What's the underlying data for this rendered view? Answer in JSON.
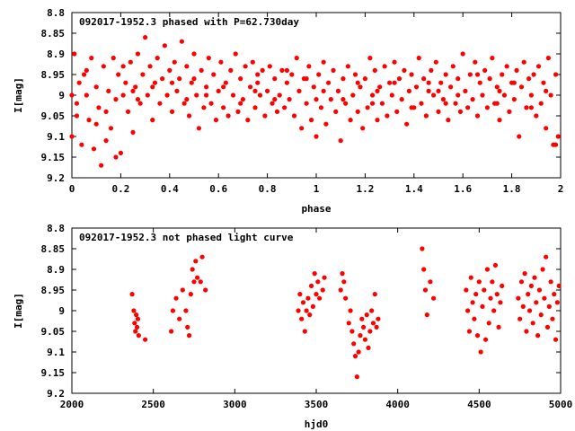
{
  "colors": {
    "points": "#ff0000",
    "axes": "#000000",
    "background": "#ffffff"
  },
  "chart_data": [
    {
      "type": "scatter",
      "title": "092017-1952.3 phased with P=62.730day",
      "xlabel": "phase",
      "ylabel": "I[mag]",
      "xlim": [
        0,
        2
      ],
      "ylim": [
        9.2,
        8.8
      ],
      "y_inverted": true,
      "xticks": [
        "0",
        "0.2",
        "0.4",
        "0.6",
        "0.8",
        "1",
        "1.2",
        "1.4",
        "1.6",
        "1.8",
        "2"
      ],
      "yticks": [
        "8.8",
        "8.85",
        "8.9",
        "8.95",
        "9",
        "9.05",
        "9.1",
        "9.15",
        "9.2"
      ],
      "grid": false,
      "points": [
        [
          0.0,
          9.1
        ],
        [
          0.01,
          8.9
        ],
        [
          0.02,
          9.02
        ],
        [
          0.03,
          8.97
        ],
        [
          0.04,
          9.12
        ],
        [
          0.05,
          8.95
        ],
        [
          0.06,
          9.0
        ],
        [
          0.07,
          9.06
        ],
        [
          0.08,
          8.91
        ],
        [
          0.09,
          9.13
        ],
        [
          0.1,
          8.98
        ],
        [
          0.11,
          9.03
        ],
        [
          0.12,
          9.17
        ],
        [
          0.13,
          8.93
        ],
        [
          0.14,
          9.04
        ],
        [
          0.15,
          8.99
        ],
        [
          0.16,
          9.08
        ],
        [
          0.17,
          8.91
        ],
        [
          0.18,
          9.01
        ],
        [
          0.19,
          8.95
        ],
        [
          0.2,
          9.14
        ],
        [
          0.21,
          9.0
        ],
        [
          0.22,
          8.97
        ],
        [
          0.23,
          9.04
        ],
        [
          0.24,
          8.92
        ],
        [
          0.25,
          9.09
        ],
        [
          0.26,
          8.98
        ],
        [
          0.27,
          8.9
        ],
        [
          0.28,
          9.02
        ],
        [
          0.29,
          8.95
        ],
        [
          0.3,
          8.86
        ],
        [
          0.31,
          9.0
        ],
        [
          0.32,
          8.93
        ],
        [
          0.33,
          9.06
        ],
        [
          0.34,
          8.97
        ],
        [
          0.35,
          8.91
        ],
        [
          0.36,
          9.02
        ],
        [
          0.37,
          8.96
        ],
        [
          0.38,
          8.88
        ],
        [
          0.39,
          9.0
        ],
        [
          0.4,
          8.94
        ],
        [
          0.41,
          9.04
        ],
        [
          0.42,
          8.92
        ],
        [
          0.43,
          8.99
        ],
        [
          0.44,
          8.96
        ],
        [
          0.45,
          8.87
        ],
        [
          0.46,
          9.02
        ],
        [
          0.47,
          8.93
        ],
        [
          0.48,
          9.05
        ],
        [
          0.49,
          8.97
        ],
        [
          0.5,
          8.9
        ],
        [
          0.51,
          9.0
        ],
        [
          0.52,
          9.08
        ],
        [
          0.53,
          8.94
        ],
        [
          0.54,
          9.03
        ],
        [
          0.55,
          8.98
        ],
        [
          0.56,
          8.91
        ],
        [
          0.57,
          9.02
        ],
        [
          0.58,
          8.95
        ],
        [
          0.59,
          9.06
        ],
        [
          0.6,
          8.99
        ],
        [
          0.61,
          8.92
        ],
        [
          0.62,
          9.03
        ],
        [
          0.63,
          8.97
        ],
        [
          0.64,
          9.05
        ],
        [
          0.65,
          8.94
        ],
        [
          0.66,
          9.0
        ],
        [
          0.67,
          8.9
        ],
        [
          0.68,
          9.04
        ],
        [
          0.69,
          8.96
        ],
        [
          0.7,
          9.01
        ],
        [
          0.71,
          8.93
        ],
        [
          0.72,
          9.06
        ],
        [
          0.73,
          8.98
        ],
        [
          0.74,
          8.92
        ],
        [
          0.75,
          9.03
        ],
        [
          0.76,
          8.97
        ],
        [
          0.77,
          9.0
        ],
        [
          0.78,
          8.94
        ],
        [
          0.79,
          9.05
        ],
        [
          0.8,
          8.99
        ],
        [
          0.81,
          8.93
        ],
        [
          0.82,
          9.02
        ],
        [
          0.83,
          8.96
        ],
        [
          0.84,
          9.04
        ],
        [
          0.85,
          9.0
        ],
        [
          0.86,
          8.94
        ],
        [
          0.87,
          9.03
        ],
        [
          0.88,
          8.97
        ],
        [
          0.89,
          9.01
        ],
        [
          0.9,
          8.95
        ],
        [
          0.91,
          9.05
        ],
        [
          0.92,
          8.91
        ],
        [
          0.93,
          8.99
        ],
        [
          0.94,
          9.08
        ],
        [
          0.95,
          8.96
        ],
        [
          0.96,
          9.02
        ],
        [
          0.97,
          8.93
        ],
        [
          0.98,
          9.06
        ],
        [
          0.99,
          8.98
        ],
        [
          1.0,
          9.1
        ],
        [
          1.01,
          8.95
        ],
        [
          1.02,
          9.03
        ],
        [
          1.03,
          8.92
        ],
        [
          1.04,
          9.07
        ],
        [
          1.05,
          8.97
        ],
        [
          1.06,
          9.01
        ],
        [
          1.07,
          8.94
        ],
        [
          1.08,
          9.04
        ],
        [
          1.09,
          8.99
        ],
        [
          1.1,
          9.11
        ],
        [
          1.11,
          8.96
        ],
        [
          1.12,
          9.02
        ],
        [
          1.13,
          8.93
        ],
        [
          1.14,
          9.06
        ],
        [
          1.15,
          9.0
        ],
        [
          1.16,
          8.95
        ],
        [
          1.17,
          9.04
        ],
        [
          1.18,
          8.98
        ],
        [
          1.19,
          9.08
        ],
        [
          1.2,
          8.96
        ],
        [
          1.21,
          9.03
        ],
        [
          1.22,
          8.91
        ],
        [
          1.23,
          9.0
        ],
        [
          1.24,
          8.94
        ],
        [
          1.25,
          9.06
        ],
        [
          1.26,
          8.98
        ],
        [
          1.27,
          9.02
        ],
        [
          1.28,
          8.93
        ],
        [
          1.29,
          9.05
        ],
        [
          1.3,
          8.97
        ],
        [
          1.31,
          9.0
        ],
        [
          1.32,
          8.92
        ],
        [
          1.33,
          9.04
        ],
        [
          1.34,
          8.96
        ],
        [
          1.35,
          9.01
        ],
        [
          1.36,
          8.94
        ],
        [
          1.37,
          9.07
        ],
        [
          1.38,
          8.99
        ],
        [
          1.39,
          8.95
        ],
        [
          1.4,
          9.03
        ],
        [
          1.41,
          8.98
        ],
        [
          1.42,
          8.91
        ],
        [
          1.43,
          9.02
        ],
        [
          1.44,
          8.96
        ],
        [
          1.45,
          9.05
        ],
        [
          1.46,
          8.99
        ],
        [
          1.47,
          8.94
        ],
        [
          1.48,
          9.0
        ],
        [
          1.49,
          8.92
        ],
        [
          1.5,
          9.04
        ],
        [
          1.51,
          8.97
        ],
        [
          1.52,
          9.01
        ],
        [
          1.53,
          8.95
        ],
        [
          1.54,
          9.06
        ],
        [
          1.55,
          8.98
        ],
        [
          1.56,
          8.93
        ],
        [
          1.57,
          9.02
        ],
        [
          1.58,
          8.96
        ],
        [
          1.59,
          9.04
        ],
        [
          1.6,
          8.9
        ],
        [
          1.61,
          8.99
        ],
        [
          1.62,
          9.03
        ],
        [
          1.63,
          8.95
        ],
        [
          1.64,
          9.01
        ],
        [
          1.65,
          8.92
        ],
        [
          1.66,
          9.05
        ],
        [
          1.67,
          8.97
        ],
        [
          1.68,
          9.0
        ],
        [
          1.69,
          8.94
        ],
        [
          1.7,
          9.03
        ],
        [
          1.71,
          8.96
        ],
        [
          1.72,
          8.91
        ],
        [
          1.73,
          9.02
        ],
        [
          1.74,
          8.98
        ],
        [
          1.75,
          9.06
        ],
        [
          1.76,
          8.95
        ],
        [
          1.77,
          9.0
        ],
        [
          1.78,
          8.93
        ],
        [
          1.79,
          9.04
        ],
        [
          1.8,
          8.97
        ],
        [
          1.81,
          9.01
        ],
        [
          1.82,
          8.94
        ],
        [
          1.83,
          9.1
        ],
        [
          1.84,
          8.98
        ],
        [
          1.85,
          8.92
        ],
        [
          1.86,
          9.03
        ],
        [
          1.87,
          8.96
        ],
        [
          1.88,
          9.0
        ],
        [
          1.89,
          8.95
        ],
        [
          1.9,
          9.05
        ],
        [
          1.91,
          8.93
        ],
        [
          1.92,
          9.02
        ],
        [
          1.93,
          8.97
        ],
        [
          1.94,
          9.08
        ],
        [
          1.95,
          8.91
        ],
        [
          1.96,
          9.0
        ],
        [
          1.97,
          9.12
        ],
        [
          1.98,
          8.95
        ],
        [
          1.99,
          9.1
        ],
        [
          0.02,
          9.05
        ],
        [
          0.06,
          8.94
        ],
        [
          0.14,
          9.11
        ],
        [
          0.18,
          9.15
        ],
        [
          0.21,
          8.93
        ],
        [
          0.27,
          9.01
        ],
        [
          0.33,
          8.98
        ],
        [
          0.41,
          8.97
        ],
        [
          0.47,
          9.01
        ],
        [
          0.55,
          9.0
        ],
        [
          0.62,
          8.98
        ],
        [
          0.69,
          9.02
        ],
        [
          0.76,
          8.95
        ],
        [
          0.83,
          9.01
        ],
        [
          0.88,
          8.94
        ],
        [
          0.96,
          8.96
        ],
        [
          1.03,
          8.99
        ],
        [
          1.11,
          9.01
        ],
        [
          1.17,
          8.97
        ],
        [
          1.23,
          9.02
        ],
        [
          1.32,
          8.97
        ],
        [
          1.39,
          9.03
        ],
        [
          1.46,
          8.97
        ],
        [
          1.53,
          9.02
        ],
        [
          1.58,
          9.0
        ],
        [
          1.66,
          8.95
        ],
        [
          1.74,
          9.02
        ],
        [
          1.81,
          8.97
        ],
        [
          1.88,
          9.03
        ],
        [
          1.94,
          8.99
        ],
        [
          0.0,
          9.0
        ],
        [
          0.25,
          8.99
        ],
        [
          0.5,
          8.96
        ],
        [
          0.75,
          8.99
        ],
        [
          1.0,
          9.01
        ],
        [
          1.25,
          8.99
        ],
        [
          1.5,
          8.99
        ],
        [
          1.75,
          8.99
        ],
        [
          1.98,
          9.12
        ],
        [
          0.1,
          9.07
        ]
      ]
    },
    {
      "type": "scatter",
      "title": "092017-1952.3 not phased light curve",
      "xlabel": "hjd0",
      "ylabel": "I[mag]",
      "xlim": [
        2000,
        5000
      ],
      "ylim": [
        9.2,
        8.8
      ],
      "y_inverted": true,
      "xticks": [
        "2000",
        "2500",
        "3000",
        "3500",
        "4000",
        "4500",
        "5000"
      ],
      "yticks": [
        "8.8",
        "8.85",
        "8.9",
        "8.95",
        "9",
        "9.05",
        "9.1",
        "9.15",
        "9.2"
      ],
      "grid": false,
      "points": [
        [
          2370,
          8.96
        ],
        [
          2380,
          9.0
        ],
        [
          2385,
          9.03
        ],
        [
          2390,
          9.05
        ],
        [
          2395,
          9.01
        ],
        [
          2400,
          9.04
        ],
        [
          2405,
          9.02
        ],
        [
          2410,
          9.06
        ],
        [
          2450,
          9.07
        ],
        [
          2610,
          9.05
        ],
        [
          2620,
          9.0
        ],
        [
          2640,
          8.97
        ],
        [
          2660,
          9.02
        ],
        [
          2680,
          8.95
        ],
        [
          2700,
          9.0
        ],
        [
          2710,
          9.04
        ],
        [
          2720,
          9.06
        ],
        [
          2730,
          8.96
        ],
        [
          2740,
          8.9
        ],
        [
          2750,
          8.93
        ],
        [
          2760,
          8.88
        ],
        [
          2770,
          8.92
        ],
        [
          2790,
          8.93
        ],
        [
          2800,
          8.87
        ],
        [
          2820,
          8.95
        ],
        [
          3390,
          9.0
        ],
        [
          3400,
          8.96
        ],
        [
          3410,
          9.02
        ],
        [
          3420,
          8.98
        ],
        [
          3430,
          9.05
        ],
        [
          3440,
          9.0
        ],
        [
          3450,
          8.97
        ],
        [
          3460,
          9.01
        ],
        [
          3470,
          8.94
        ],
        [
          3480,
          8.99
        ],
        [
          3490,
          8.91
        ],
        [
          3500,
          8.96
        ],
        [
          3510,
          8.93
        ],
        [
          3520,
          8.97
        ],
        [
          3540,
          8.95
        ],
        [
          3550,
          8.92
        ],
        [
          3650,
          8.95
        ],
        [
          3660,
          8.91
        ],
        [
          3670,
          8.93
        ],
        [
          3680,
          8.97
        ],
        [
          3700,
          9.03
        ],
        [
          3710,
          9.0
        ],
        [
          3720,
          9.05
        ],
        [
          3730,
          9.08
        ],
        [
          3740,
          9.11
        ],
        [
          3750,
          9.16
        ],
        [
          3760,
          9.1
        ],
        [
          3770,
          9.06
        ],
        [
          3780,
          9.02
        ],
        [
          3790,
          9.04
        ],
        [
          3800,
          9.07
        ],
        [
          3810,
          9.01
        ],
        [
          3820,
          9.09
        ],
        [
          3830,
          9.05
        ],
        [
          3840,
          9.0
        ],
        [
          3850,
          9.03
        ],
        [
          3860,
          8.96
        ],
        [
          3870,
          9.04
        ],
        [
          3880,
          9.02
        ],
        [
          4150,
          8.85
        ],
        [
          4160,
          8.9
        ],
        [
          4170,
          8.95
        ],
        [
          4180,
          9.01
        ],
        [
          4200,
          8.93
        ],
        [
          4220,
          8.97
        ],
        [
          4420,
          8.95
        ],
        [
          4430,
          9.0
        ],
        [
          4440,
          9.05
        ],
        [
          4450,
          8.92
        ],
        [
          4460,
          8.98
        ],
        [
          4470,
          9.02
        ],
        [
          4480,
          8.96
        ],
        [
          4490,
          9.06
        ],
        [
          4500,
          8.93
        ],
        [
          4510,
          9.1
        ],
        [
          4520,
          8.99
        ],
        [
          4530,
          8.95
        ],
        [
          4540,
          9.07
        ],
        [
          4550,
          8.9
        ],
        [
          4560,
          9.03
        ],
        [
          4570,
          8.97
        ],
        [
          4580,
          8.93
        ],
        [
          4590,
          9.0
        ],
        [
          4600,
          8.89
        ],
        [
          4610,
          8.96
        ],
        [
          4620,
          9.04
        ],
        [
          4630,
          8.98
        ],
        [
          4640,
          8.94
        ],
        [
          4740,
          8.97
        ],
        [
          4750,
          9.02
        ],
        [
          4760,
          8.93
        ],
        [
          4770,
          8.99
        ],
        [
          4780,
          8.91
        ],
        [
          4790,
          9.05
        ],
        [
          4800,
          8.96
        ],
        [
          4810,
          9.0
        ],
        [
          4820,
          8.94
        ],
        [
          4830,
          9.03
        ],
        [
          4840,
          8.92
        ],
        [
          4850,
          8.98
        ],
        [
          4860,
          9.06
        ],
        [
          4870,
          8.95
        ],
        [
          4880,
          9.01
        ],
        [
          4890,
          8.9
        ],
        [
          4900,
          8.97
        ],
        [
          4910,
          8.87
        ],
        [
          4920,
          9.04
        ],
        [
          4930,
          8.99
        ],
        [
          4940,
          8.93
        ],
        [
          4950,
          9.02
        ],
        [
          4960,
          8.96
        ],
        [
          4970,
          9.07
        ],
        [
          4980,
          8.98
        ],
        [
          4990,
          8.94
        ]
      ]
    }
  ]
}
